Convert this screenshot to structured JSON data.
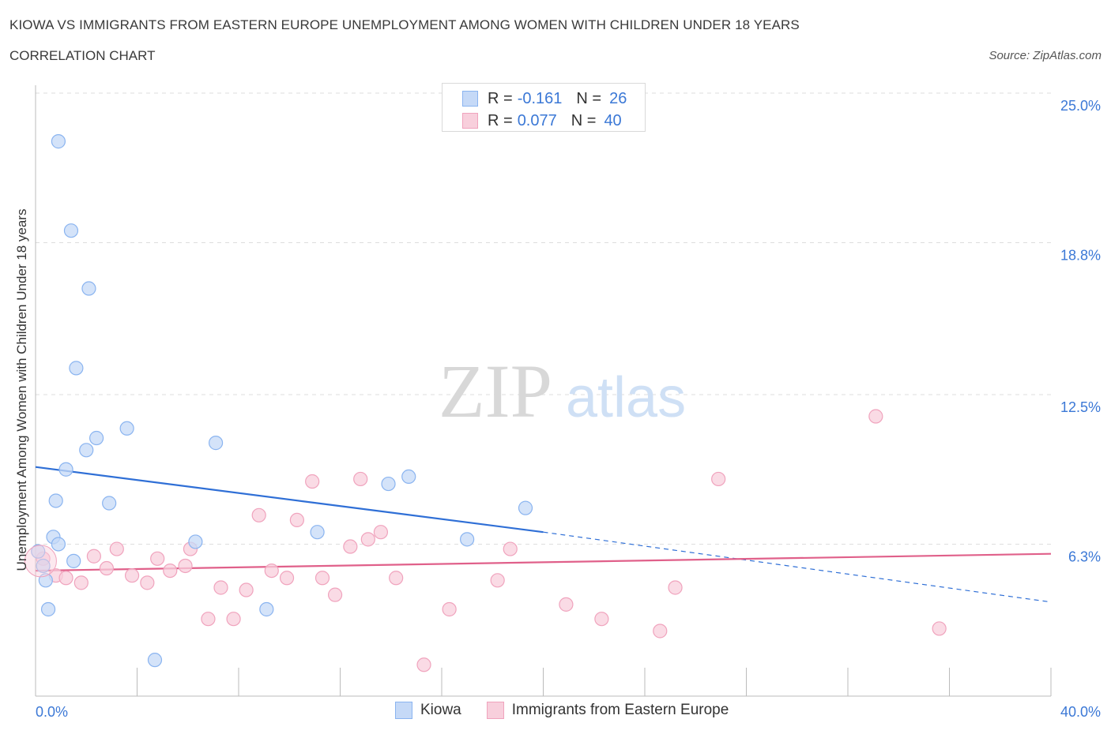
{
  "title": "KIOWA VS IMMIGRANTS FROM EASTERN EUROPE UNEMPLOYMENT AMONG WOMEN WITH CHILDREN UNDER 18 YEARS",
  "subtitle": "CORRELATION CHART",
  "source": "Source: ZipAtlas.com",
  "watermark": {
    "zip": "ZIP",
    "atlas": "atlas"
  },
  "legend_stats": [
    {
      "r_label": "R =",
      "r_value": "-0.161",
      "n_label": "N =",
      "n_value": "26"
    },
    {
      "r_label": "R =",
      "r_value": "0.077",
      "n_label": "N =",
      "n_value": "40"
    }
  ],
  "chart_data": {
    "type": "scatter",
    "title": "KIOWA VS IMMIGRANTS FROM EASTERN EUROPE UNEMPLOYMENT AMONG WOMEN WITH CHILDREN UNDER 18 YEARS",
    "xlabel": "",
    "ylabel": "Unemployment Among Women with Children Under 18 years",
    "xlim": [
      0,
      40
    ],
    "ylim": [
      0,
      25
    ],
    "x_tick_labels": [
      {
        "value": 0,
        "label": "0.0%"
      },
      {
        "value": 40,
        "label": "40.0%"
      }
    ],
    "y_tick_labels": [
      {
        "value": 6.3,
        "label": "6.3%"
      },
      {
        "value": 12.5,
        "label": "12.5%"
      },
      {
        "value": 18.8,
        "label": "18.8%"
      },
      {
        "value": 25.0,
        "label": "25.0%"
      }
    ],
    "grid": true,
    "legend_position": "bottom",
    "series": [
      {
        "name": "Kiowa",
        "color": "#8ab4f0",
        "fill": "#c5d9f7",
        "line_color": "#2f6fd6",
        "r": -0.161,
        "n": 26,
        "trend": {
          "x0": 0,
          "y0": 9.5,
          "x1": 20,
          "y1": 6.8,
          "dash_to_x": 40,
          "dash_to_y": 3.9
        },
        "points": [
          [
            0.9,
            23.0
          ],
          [
            1.4,
            19.3
          ],
          [
            2.1,
            16.9
          ],
          [
            1.6,
            13.6
          ],
          [
            2.4,
            10.7
          ],
          [
            3.6,
            11.1
          ],
          [
            7.1,
            10.5
          ],
          [
            2.0,
            10.2
          ],
          [
            1.2,
            9.4
          ],
          [
            0.8,
            8.1
          ],
          [
            2.9,
            8.0
          ],
          [
            0.7,
            6.6
          ],
          [
            0.9,
            6.3
          ],
          [
            6.3,
            6.4
          ],
          [
            0.1,
            6.0
          ],
          [
            0.3,
            5.4
          ],
          [
            1.5,
            5.6
          ],
          [
            0.4,
            4.8
          ],
          [
            0.5,
            3.6
          ],
          [
            9.1,
            3.6
          ],
          [
            4.7,
            1.5
          ],
          [
            13.9,
            8.8
          ],
          [
            14.7,
            9.1
          ],
          [
            11.1,
            6.8
          ],
          [
            17.0,
            6.5
          ],
          [
            19.3,
            7.8
          ]
        ]
      },
      {
        "name": "Immigrants from Eastern Europe",
        "color": "#f0a3bd",
        "fill": "#f8cfdc",
        "line_color": "#e0608a",
        "r": 0.077,
        "n": 40,
        "trend": {
          "x0": 0,
          "y0": 5.2,
          "x1": 40,
          "y1": 5.9
        },
        "points": [
          [
            0.3,
            5.7
          ],
          [
            0.8,
            5.0
          ],
          [
            1.2,
            4.9
          ],
          [
            1.8,
            4.7
          ],
          [
            2.3,
            5.8
          ],
          [
            2.8,
            5.3
          ],
          [
            3.2,
            6.1
          ],
          [
            3.8,
            5.0
          ],
          [
            4.4,
            4.7
          ],
          [
            4.8,
            5.7
          ],
          [
            5.3,
            5.2
          ],
          [
            5.9,
            5.4
          ],
          [
            6.1,
            6.1
          ],
          [
            6.8,
            3.2
          ],
          [
            7.3,
            4.5
          ],
          [
            7.8,
            3.2
          ],
          [
            8.3,
            4.4
          ],
          [
            8.8,
            7.5
          ],
          [
            9.3,
            5.2
          ],
          [
            9.9,
            4.9
          ],
          [
            10.3,
            7.3
          ],
          [
            10.9,
            8.9
          ],
          [
            11.3,
            4.9
          ],
          [
            11.8,
            4.2
          ],
          [
            12.4,
            6.2
          ],
          [
            12.8,
            9.0
          ],
          [
            13.1,
            6.5
          ],
          [
            13.6,
            6.8
          ],
          [
            14.2,
            4.9
          ],
          [
            15.3,
            1.3
          ],
          [
            16.3,
            3.6
          ],
          [
            18.2,
            4.8
          ],
          [
            18.7,
            6.1
          ],
          [
            20.9,
            3.8
          ],
          [
            22.3,
            3.2
          ],
          [
            24.6,
            2.7
          ],
          [
            25.2,
            4.5
          ],
          [
            26.9,
            9.0
          ],
          [
            33.1,
            11.6
          ],
          [
            35.6,
            2.8
          ]
        ]
      }
    ]
  }
}
